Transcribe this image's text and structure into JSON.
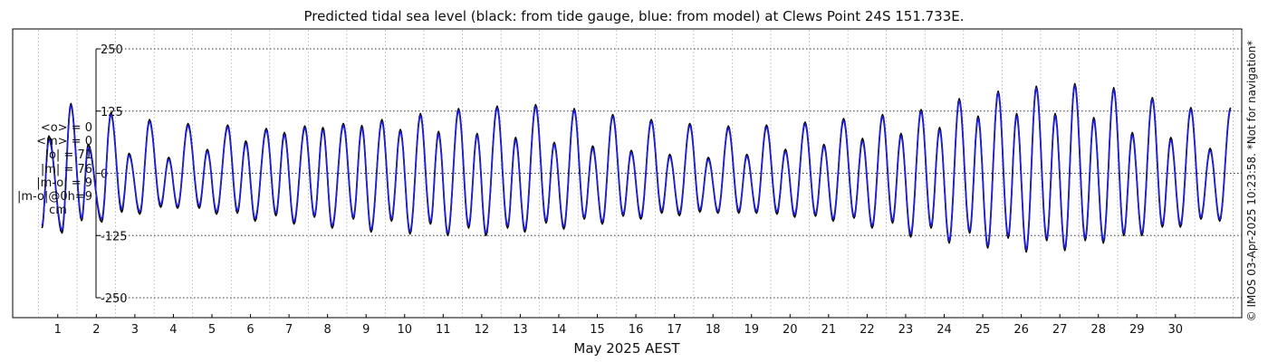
{
  "chart_data": {
    "type": "line",
    "title": "Predicted tidal sea level (black: from tide gauge, blue: from model) at Clews Point 24S 151.733E.",
    "xlabel": "May 2025 AEST",
    "ylabel": "",
    "ylim": [
      -290,
      290
    ],
    "xlim": [
      -0.67,
      31.22
    ],
    "yticks": [
      -250,
      -125,
      0,
      125,
      250
    ],
    "xticks": [
      "1",
      "2",
      "3",
      "4",
      "5",
      "6",
      "7",
      "8",
      "9",
      "10",
      "11",
      "12",
      "13",
      "14",
      "15",
      "16",
      "17",
      "18",
      "19",
      "20",
      "21",
      "22",
      "23",
      "24",
      "25",
      "26",
      "27",
      "28",
      "29",
      "30"
    ],
    "grid": "dotted",
    "x_units": "days of May 2025 (AEST)",
    "y_units": "cm",
    "series": [
      {
        "name": "tide gauge",
        "color": "#000000",
        "extrema": [
          [
            0.09,
            -110
          ],
          [
            0.27,
            75
          ],
          [
            0.61,
            -120
          ],
          [
            0.84,
            140
          ],
          [
            1.12,
            -95
          ],
          [
            1.29,
            58
          ],
          [
            1.64,
            -98
          ],
          [
            1.88,
            122
          ],
          [
            2.16,
            -78
          ],
          [
            2.35,
            40
          ],
          [
            2.63,
            -82
          ],
          [
            2.88,
            108
          ],
          [
            3.17,
            -68
          ],
          [
            3.38,
            32
          ],
          [
            3.61,
            -70
          ],
          [
            3.88,
            100
          ],
          [
            4.17,
            -70
          ],
          [
            4.38,
            48
          ],
          [
            4.62,
            -82
          ],
          [
            4.91,
            97
          ],
          [
            5.16,
            -80
          ],
          [
            5.38,
            65
          ],
          [
            5.62,
            -96
          ],
          [
            5.91,
            90
          ],
          [
            6.16,
            -85
          ],
          [
            6.38,
            82
          ],
          [
            6.63,
            -102
          ],
          [
            6.91,
            95
          ],
          [
            7.16,
            -88
          ],
          [
            7.38,
            92
          ],
          [
            7.62,
            -110
          ],
          [
            7.91,
            100
          ],
          [
            8.17,
            -92
          ],
          [
            8.39,
            96
          ],
          [
            8.63,
            -118
          ],
          [
            8.91,
            108
          ],
          [
            9.16,
            -96
          ],
          [
            9.39,
            88
          ],
          [
            9.64,
            -122
          ],
          [
            9.91,
            120
          ],
          [
            10.17,
            -102
          ],
          [
            10.38,
            84
          ],
          [
            10.62,
            -125
          ],
          [
            10.9,
            130
          ],
          [
            11.16,
            -110
          ],
          [
            11.38,
            80
          ],
          [
            11.61,
            -125
          ],
          [
            11.9,
            135
          ],
          [
            12.17,
            -110
          ],
          [
            12.38,
            72
          ],
          [
            12.62,
            -118
          ],
          [
            12.9,
            138
          ],
          [
            13.17,
            -100
          ],
          [
            13.38,
            62
          ],
          [
            13.63,
            -112
          ],
          [
            13.9,
            130
          ],
          [
            14.16,
            -92
          ],
          [
            14.38,
            55
          ],
          [
            14.63,
            -102
          ],
          [
            14.9,
            118
          ],
          [
            15.17,
            -86
          ],
          [
            15.38,
            46
          ],
          [
            15.63,
            -92
          ],
          [
            15.9,
            108
          ],
          [
            16.17,
            -80
          ],
          [
            16.38,
            38
          ],
          [
            16.63,
            -85
          ],
          [
            16.9,
            100
          ],
          [
            17.16,
            -78
          ],
          [
            17.38,
            32
          ],
          [
            17.63,
            -80
          ],
          [
            17.9,
            95
          ],
          [
            18.17,
            -80
          ],
          [
            18.38,
            38
          ],
          [
            18.63,
            -80
          ],
          [
            18.89,
            97
          ],
          [
            19.16,
            -82
          ],
          [
            19.38,
            48
          ],
          [
            19.62,
            -88
          ],
          [
            19.89,
            103
          ],
          [
            20.16,
            -86
          ],
          [
            20.38,
            58
          ],
          [
            20.62,
            -96
          ],
          [
            20.89,
            110
          ],
          [
            21.16,
            -90
          ],
          [
            21.38,
            70
          ],
          [
            21.63,
            -110
          ],
          [
            21.9,
            118
          ],
          [
            22.16,
            -100
          ],
          [
            22.38,
            80
          ],
          [
            22.63,
            -128
          ],
          [
            22.9,
            128
          ],
          [
            23.16,
            -110
          ],
          [
            23.38,
            92
          ],
          [
            23.63,
            -140
          ],
          [
            23.89,
            150
          ],
          [
            24.16,
            -120
          ],
          [
            24.38,
            115
          ],
          [
            24.63,
            -150
          ],
          [
            24.9,
            165
          ],
          [
            25.16,
            -130
          ],
          [
            25.38,
            120
          ],
          [
            25.63,
            -158
          ],
          [
            25.89,
            175
          ],
          [
            26.16,
            -135
          ],
          [
            26.38,
            120
          ],
          [
            26.63,
            -155
          ],
          [
            26.89,
            180
          ],
          [
            27.16,
            -135
          ],
          [
            27.38,
            112
          ],
          [
            27.63,
            -140
          ],
          [
            27.9,
            172
          ],
          [
            28.16,
            -125
          ],
          [
            28.38,
            82
          ],
          [
            28.63,
            -125
          ],
          [
            28.9,
            152
          ],
          [
            29.16,
            -108
          ],
          [
            29.38,
            72
          ],
          [
            29.63,
            -108
          ],
          [
            29.9,
            132
          ],
          [
            30.16,
            -92
          ],
          [
            30.4,
            50
          ],
          [
            30.65,
            -96
          ],
          [
            30.93,
            132
          ]
        ]
      },
      {
        "name": "model",
        "color": "#1f1fd2",
        "extrema": [
          [
            0.09,
            -105
          ],
          [
            0.27,
            68
          ],
          [
            0.61,
            -114
          ],
          [
            0.84,
            136
          ],
          [
            1.12,
            -90
          ],
          [
            1.29,
            52
          ],
          [
            1.64,
            -92
          ],
          [
            1.88,
            118
          ],
          [
            2.16,
            -72
          ],
          [
            2.35,
            36
          ],
          [
            2.63,
            -77
          ],
          [
            2.88,
            104
          ],
          [
            3.17,
            -63
          ],
          [
            3.38,
            28
          ],
          [
            3.61,
            -66
          ],
          [
            3.88,
            96
          ],
          [
            4.17,
            -65
          ],
          [
            4.38,
            44
          ],
          [
            4.62,
            -77
          ],
          [
            4.91,
            93
          ],
          [
            5.16,
            -75
          ],
          [
            5.38,
            60
          ],
          [
            5.62,
            -91
          ],
          [
            5.91,
            86
          ],
          [
            6.16,
            -80
          ],
          [
            6.38,
            77
          ],
          [
            6.63,
            -97
          ],
          [
            6.91,
            91
          ],
          [
            7.16,
            -84
          ],
          [
            7.38,
            87
          ],
          [
            7.62,
            -105
          ],
          [
            7.91,
            96
          ],
          [
            8.17,
            -88
          ],
          [
            8.39,
            91
          ],
          [
            8.63,
            -113
          ],
          [
            8.91,
            104
          ],
          [
            9.16,
            -91
          ],
          [
            9.39,
            84
          ],
          [
            9.64,
            -117
          ],
          [
            9.91,
            116
          ],
          [
            10.17,
            -97
          ],
          [
            10.38,
            79
          ],
          [
            10.62,
            -120
          ],
          [
            10.9,
            126
          ],
          [
            11.16,
            -105
          ],
          [
            11.38,
            76
          ],
          [
            11.61,
            -120
          ],
          [
            11.9,
            131
          ],
          [
            12.17,
            -105
          ],
          [
            12.38,
            67
          ],
          [
            12.62,
            -113
          ],
          [
            12.9,
            134
          ],
          [
            13.17,
            -95
          ],
          [
            13.38,
            58
          ],
          [
            13.63,
            -107
          ],
          [
            13.9,
            126
          ],
          [
            14.16,
            -88
          ],
          [
            14.38,
            50
          ],
          [
            14.63,
            -97
          ],
          [
            14.9,
            114
          ],
          [
            15.17,
            -82
          ],
          [
            15.38,
            42
          ],
          [
            15.63,
            -87
          ],
          [
            15.9,
            104
          ],
          [
            16.17,
            -75
          ],
          [
            16.38,
            34
          ],
          [
            16.63,
            -80
          ],
          [
            16.9,
            96
          ],
          [
            17.16,
            -73
          ],
          [
            17.38,
            28
          ],
          [
            17.63,
            -76
          ],
          [
            17.9,
            91
          ],
          [
            18.17,
            -75
          ],
          [
            18.38,
            34
          ],
          [
            18.63,
            -76
          ],
          [
            18.89,
            93
          ],
          [
            19.16,
            -77
          ],
          [
            19.38,
            44
          ],
          [
            19.62,
            -83
          ],
          [
            19.89,
            99
          ],
          [
            20.16,
            -82
          ],
          [
            20.38,
            54
          ],
          [
            20.62,
            -91
          ],
          [
            20.89,
            106
          ],
          [
            21.16,
            -86
          ],
          [
            21.38,
            65
          ],
          [
            21.63,
            -105
          ],
          [
            21.9,
            114
          ],
          [
            22.16,
            -95
          ],
          [
            22.38,
            75
          ],
          [
            22.63,
            -122
          ],
          [
            22.9,
            124
          ],
          [
            23.16,
            -105
          ],
          [
            23.38,
            87
          ],
          [
            23.63,
            -135
          ],
          [
            23.89,
            146
          ],
          [
            24.16,
            -115
          ],
          [
            24.38,
            110
          ],
          [
            24.63,
            -145
          ],
          [
            24.9,
            161
          ],
          [
            25.16,
            -125
          ],
          [
            25.38,
            115
          ],
          [
            25.63,
            -153
          ],
          [
            25.89,
            171
          ],
          [
            26.16,
            -130
          ],
          [
            26.38,
            115
          ],
          [
            26.63,
            -150
          ],
          [
            26.89,
            176
          ],
          [
            27.16,
            -130
          ],
          [
            27.38,
            107
          ],
          [
            27.63,
            -135
          ],
          [
            27.9,
            168
          ],
          [
            28.16,
            -120
          ],
          [
            28.38,
            77
          ],
          [
            28.63,
            -120
          ],
          [
            28.9,
            148
          ],
          [
            29.16,
            -103
          ],
          [
            29.38,
            67
          ],
          [
            29.63,
            -103
          ],
          [
            29.9,
            128
          ],
          [
            30.16,
            -88
          ],
          [
            30.4,
            46
          ],
          [
            30.65,
            -92
          ],
          [
            30.93,
            128
          ]
        ]
      }
    ]
  },
  "stats": {
    "mean_obs": "<o> = 0",
    "mean_model": "<m> = 0",
    "abs_obs": "|o| = 71",
    "abs_model": "|m| = 76",
    "abs_diff": "|m-o| = 9",
    "abs_diff_0h": "|m-o|@0h=9",
    "units": "cm"
  },
  "side_note": "© IMOS 03-Apr-2025 10:23:58. *Not for navigation*"
}
